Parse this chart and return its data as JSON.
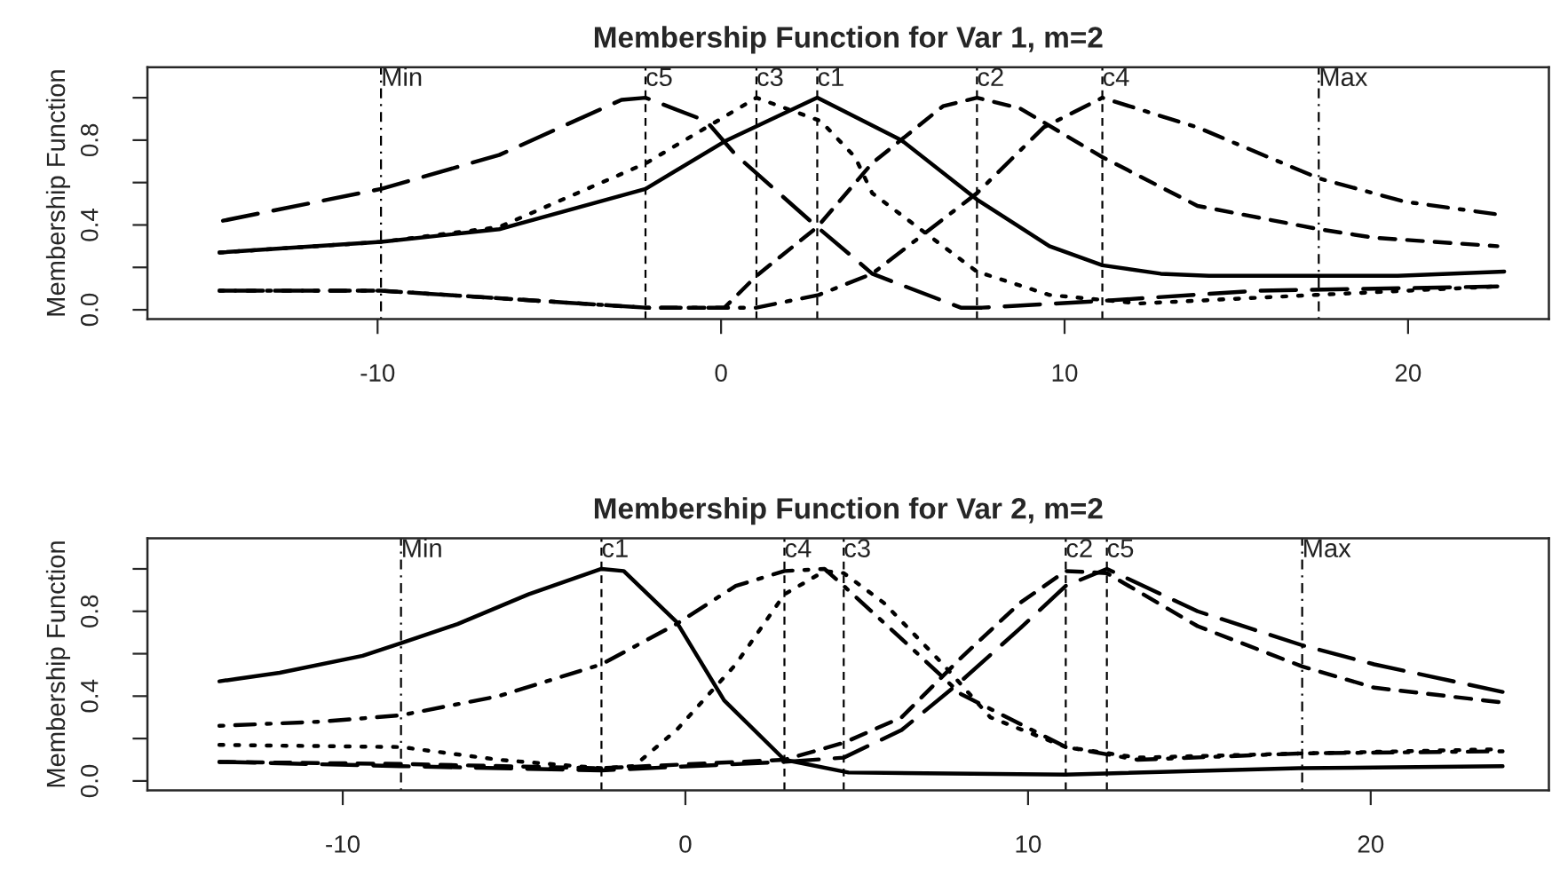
{
  "chart_data": [
    {
      "type": "line",
      "title": "Membership Function for Var 1, m=2",
      "ylabel": "Membership Function",
      "xlim": [
        -16.7,
        24.1
      ],
      "ylim": [
        -0.044,
        1.144
      ],
      "xticks": [
        -10,
        0,
        10,
        20
      ],
      "yticks": [
        {
          "value": 0,
          "label": "0.0"
        },
        {
          "value": 0.2,
          "label": null
        },
        {
          "value": 0.4,
          "label": "0.4"
        },
        {
          "value": 0.6,
          "label": null
        },
        {
          "value": 0.8,
          "label": "0.8"
        },
        {
          "value": 1.0,
          "label": null
        }
      ],
      "grid": false,
      "legend": false,
      "series": [
        {
          "color": "#000000",
          "line_style": "solid",
          "x": [
            -14.6,
            -9.9,
            -6.46,
            -2.2,
            0.17,
            2.8,
            5.25,
            7.45,
            9.56,
            11.1,
            12.8,
            14.2,
            19.7,
            22.8
          ],
          "values": [
            0.27,
            0.32,
            0.38,
            0.57,
            0.8,
            1.0,
            0.8,
            0.52,
            0.3,
            0.21,
            0.17,
            0.16,
            0.16,
            0.18
          ]
        },
        {
          "color": "#000000",
          "line_style": "dashed",
          "x": [
            -14.6,
            -9.9,
            -2.2,
            0.1,
            1.03,
            2.8,
            4.39,
            6.46,
            7.45,
            8.7,
            11.1,
            13.87,
            17.4,
            19.0,
            22.6
          ],
          "values": [
            0.09,
            0.09,
            0.01,
            0.01,
            0.16,
            0.39,
            0.69,
            0.96,
            1.0,
            0.95,
            0.72,
            0.49,
            0.38,
            0.34,
            0.3
          ]
        },
        {
          "color": "#000000",
          "line_style": "dotted",
          "x": [
            -14.6,
            -9.9,
            -6.46,
            -2.2,
            1.03,
            2.9,
            3.9,
            4.4,
            7.45,
            9.56,
            12.2,
            17.3,
            22.6
          ],
          "values": [
            0.27,
            0.32,
            0.39,
            0.69,
            1.0,
            0.89,
            0.72,
            0.55,
            0.18,
            0.07,
            0.03,
            0.07,
            0.11
          ]
        },
        {
          "color": "#000000",
          "line_style": "dashdot",
          "x": [
            -14.6,
            -9.9,
            -2.2,
            1.03,
            2.84,
            4.4,
            7.45,
            9.39,
            11.1,
            13.87,
            17.4,
            19.9,
            22.6
          ],
          "values": [
            0.09,
            0.09,
            0.01,
            0.01,
            0.07,
            0.17,
            0.55,
            0.86,
            1.0,
            0.86,
            0.62,
            0.51,
            0.45
          ]
        },
        {
          "color": "#000000",
          "line_style": "longdash",
          "x": [
            -14.5,
            -9.9,
            -6.46,
            -2.9,
            -2.2,
            -0.43,
            0.43,
            2.8,
            3.9,
            4.4,
            6.98,
            7.6,
            10.9,
            15.6,
            22.6
          ],
          "values": [
            0.42,
            0.57,
            0.73,
            0.99,
            1.0,
            0.89,
            0.73,
            0.39,
            0.24,
            0.17,
            0.01,
            0.01,
            0.04,
            0.09,
            0.11
          ]
        }
      ],
      "ref_lines": [
        {
          "axis": "x",
          "value": -9.9,
          "label": "Min",
          "line_style": "dashdot"
        },
        {
          "axis": "x",
          "value": -2.2,
          "label": "c5",
          "line_style": "dashed"
        },
        {
          "axis": "x",
          "value": 1.03,
          "label": "c3",
          "line_style": "dashed"
        },
        {
          "axis": "x",
          "value": 2.8,
          "label": "c1",
          "line_style": "dashed"
        },
        {
          "axis": "x",
          "value": 7.45,
          "label": "c2",
          "line_style": "dashed"
        },
        {
          "axis": "x",
          "value": 11.1,
          "label": "c4",
          "line_style": "dashed"
        },
        {
          "axis": "x",
          "value": 17.4,
          "label": "Max",
          "line_style": "dashdot"
        }
      ]
    },
    {
      "type": "line",
      "title": "Membership Function for Var 2, m=2",
      "ylabel": "Membership Function",
      "xlim": [
        -15.7,
        25.2
      ],
      "ylim": [
        -0.044,
        1.144
      ],
      "xticks": [
        -10,
        0,
        10,
        20
      ],
      "yticks": [
        {
          "value": 0,
          "label": "0.0"
        },
        {
          "value": 0.2,
          "label": null
        },
        {
          "value": 0.4,
          "label": "0.4"
        },
        {
          "value": 0.6,
          "label": null
        },
        {
          "value": 0.8,
          "label": "0.8"
        },
        {
          "value": 1.0,
          "label": null
        }
      ],
      "grid": false,
      "legend": false,
      "series": [
        {
          "color": "#000000",
          "line_style": "solid",
          "x": [
            -13.6,
            -11.84,
            -9.42,
            -8.3,
            -6.65,
            -4.58,
            -2.45,
            -1.8,
            -0.26,
            1.13,
            2.89,
            4.76,
            11.1,
            17.9,
            23.85
          ],
          "values": [
            0.47,
            0.51,
            0.59,
            0.65,
            0.74,
            0.88,
            1.0,
            0.99,
            0.75,
            0.38,
            0.1,
            0.04,
            0.03,
            0.06,
            0.07
          ]
        },
        {
          "color": "#000000",
          "line_style": "dashed",
          "x": [
            -13.6,
            -8.3,
            -2.45,
            2.89,
            4.62,
            6.31,
            8.04,
            9.77,
            11.1,
            12.3,
            14.95,
            18.0,
            20.1,
            23.85
          ],
          "values": [
            0.09,
            0.08,
            0.06,
            0.1,
            0.18,
            0.3,
            0.58,
            0.84,
            0.99,
            0.98,
            0.73,
            0.54,
            0.44,
            0.37
          ]
        },
        {
          "color": "#000000",
          "line_style": "dotted",
          "x": [
            -13.6,
            -8.3,
            -5.45,
            -2.45,
            -1.5,
            -0.26,
            1.47,
            2.89,
            4.06,
            4.62,
            5.79,
            7.52,
            8.9,
            11.1,
            13.2,
            18.0,
            23.85
          ],
          "values": [
            0.17,
            0.16,
            0.1,
            0.06,
            0.07,
            0.24,
            0.55,
            0.88,
            0.99,
            0.98,
            0.84,
            0.55,
            0.3,
            0.16,
            0.11,
            0.13,
            0.15
          ]
        },
        {
          "color": "#000000",
          "line_style": "dashdot",
          "x": [
            -13.6,
            -10.6,
            -8.3,
            -5.45,
            -2.45,
            -0.26,
            1.47,
            2.89,
            4.06,
            4.62,
            6.31,
            8.04,
            11.1,
            13.2,
            18.0,
            23.85
          ],
          "values": [
            0.26,
            0.28,
            0.31,
            0.4,
            0.55,
            0.74,
            0.92,
            0.99,
            1.0,
            0.92,
            0.67,
            0.41,
            0.16,
            0.1,
            0.13,
            0.14
          ]
        },
        {
          "color": "#000000",
          "line_style": "longdash",
          "x": [
            -13.6,
            -8.3,
            -2.45,
            2.89,
            4.62,
            6.31,
            8.04,
            9.77,
            11.1,
            12.3,
            14.95,
            18.0,
            20.1,
            23.85
          ],
          "values": [
            0.09,
            0.07,
            0.05,
            0.09,
            0.11,
            0.24,
            0.47,
            0.72,
            0.92,
            1.0,
            0.8,
            0.64,
            0.55,
            0.42
          ]
        }
      ],
      "ref_lines": [
        {
          "axis": "x",
          "value": -8.3,
          "label": "Min",
          "line_style": "dashdot"
        },
        {
          "axis": "x",
          "value": -2.45,
          "label": "c1",
          "line_style": "dashed"
        },
        {
          "axis": "x",
          "value": 2.89,
          "label": "c4",
          "line_style": "dashed"
        },
        {
          "axis": "x",
          "value": 4.62,
          "label": "c3",
          "line_style": "dashed"
        },
        {
          "axis": "x",
          "value": 11.1,
          "label": "c2",
          "line_style": "dashed"
        },
        {
          "axis": "x",
          "value": 12.3,
          "label": "c5",
          "line_style": "dashed"
        },
        {
          "axis": "x",
          "value": 18.0,
          "label": "Max",
          "line_style": "dashdot"
        }
      ]
    }
  ]
}
